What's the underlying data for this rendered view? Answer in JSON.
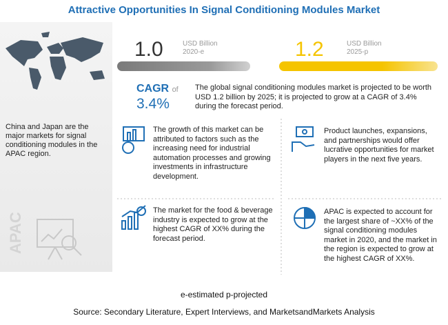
{
  "title": "Attractive Opportunities In Signal Conditioning Modules Market",
  "left_panel": {
    "text": "China and Japan are the major markets for signal conditioning modules in the APAC region.",
    "region": "APAC"
  },
  "market_size": [
    {
      "value": "1.0",
      "unit": "USD Billion",
      "year": "2020-e"
    },
    {
      "value": "1.2",
      "unit": "USD Billion",
      "year": "2025-p"
    }
  ],
  "cagr": {
    "label": "CAGR",
    "of": "of",
    "value": "3.4%",
    "text": "The global signal conditioning modules market is projected to be worth USD 1.2 billion by 2025; it is projected to grow at a CAGR of 3.4% during the forecast period."
  },
  "insights": [
    "The growth of this market can be attributed to factors such as the increasing need for industrial automation processes and growing investments in infrastructure development.",
    "Product launches, expansions, and partnerships would offer lucrative opportunities for market players in the next five years.",
    "The market for the food & beverage industry is expected to grow at the highest CAGR of XX% during the forecast period.",
    "APAC is expected to account for the largest share of ~XX% of the signal conditioning modules market in 2020, and the market in the region is expected to grow at the highest CAGR of XX%."
  ],
  "footer": {
    "note": "e-estimated p-projected",
    "source": "Source: Secondary Literature, Expert Interviews, and MarketsandMarkets Analysis"
  }
}
